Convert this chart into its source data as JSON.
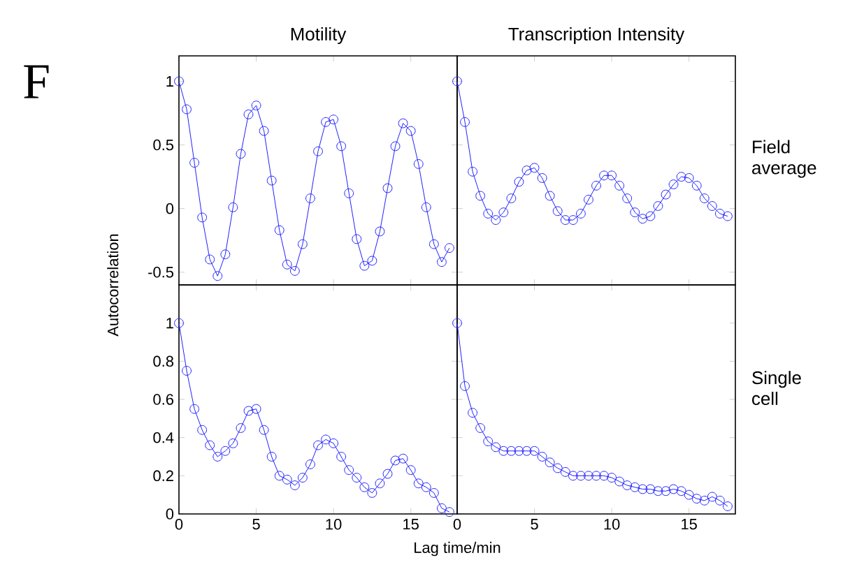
{
  "chart_data": [
    {
      "type": "line",
      "title": "Motility",
      "ylabel": "Autocorrelation",
      "annotations": [
        "F"
      ],
      "tick_labels": "y",
      "marker": "circle",
      "line_style": "solid",
      "x": [
        0,
        0.5,
        1,
        1.5,
        2,
        2.5,
        3,
        3.5,
        4,
        4.5,
        5,
        5.5,
        6,
        6.5,
        7,
        7.5,
        8,
        8.5,
        9,
        9.5,
        10,
        10.5,
        11,
        11.5,
        12,
        12.5,
        13,
        13.5,
        14,
        14.5,
        15,
        15.5,
        16,
        16.5,
        17,
        17.5
      ],
      "xlim": [
        0,
        18
      ],
      "ylim": [
        -0.6,
        1.2
      ],
      "xticks": [
        0,
        5,
        10,
        15
      ],
      "yticks": [
        -0.5,
        0,
        0.5,
        1
      ],
      "series": [
        {
          "color": "#2020ff",
          "values": [
            1.0,
            0.78,
            0.36,
            -0.07,
            -0.4,
            -0.53,
            -0.36,
            0.01,
            0.43,
            0.74,
            0.81,
            0.61,
            0.22,
            -0.17,
            -0.44,
            -0.49,
            -0.28,
            0.08,
            0.45,
            0.68,
            0.7,
            0.49,
            0.12,
            -0.24,
            -0.45,
            -0.41,
            -0.18,
            0.16,
            0.49,
            0.67,
            0.61,
            0.35,
            0.01,
            -0.28,
            -0.42,
            -0.31
          ]
        }
      ]
    },
    {
      "type": "line",
      "title": "Transcription Intensity",
      "annotations": [
        "Field average"
      ],
      "tick_labels": false,
      "marker": "circle",
      "line_style": "solid",
      "x": [
        0,
        0.5,
        1,
        1.5,
        2,
        2.5,
        3,
        3.5,
        4,
        4.5,
        5,
        5.5,
        6,
        6.5,
        7,
        7.5,
        8,
        8.5,
        9,
        9.5,
        10,
        10.5,
        11,
        11.5,
        12,
        12.5,
        13,
        13.5,
        14,
        14.5,
        15,
        15.5,
        16,
        16.5,
        17,
        17.5
      ],
      "xlim": [
        0,
        18
      ],
      "ylim": [
        -0.6,
        1.2
      ],
      "xticks": [
        0,
        5,
        10,
        15
      ],
      "yticks": [
        -0.5,
        0,
        0.5,
        1
      ],
      "series": [
        {
          "color": "#2020ff",
          "values": [
            1.0,
            0.68,
            0.29,
            0.1,
            -0.04,
            -0.09,
            -0.03,
            0.08,
            0.21,
            0.3,
            0.32,
            0.24,
            0.1,
            -0.02,
            -0.09,
            -0.09,
            -0.04,
            0.07,
            0.18,
            0.26,
            0.26,
            0.18,
            0.08,
            -0.03,
            -0.08,
            -0.06,
            0.02,
            0.11,
            0.19,
            0.25,
            0.24,
            0.18,
            0.08,
            0.02,
            -0.04,
            -0.06
          ]
        }
      ]
    },
    {
      "type": "line",
      "xlabel": "Lag time/min",
      "marker": "circle",
      "line_style": "solid",
      "x": [
        0,
        0.5,
        1,
        1.5,
        2,
        2.5,
        3,
        3.5,
        4,
        4.5,
        5,
        5.5,
        6,
        6.5,
        7,
        7.5,
        8,
        8.5,
        9,
        9.5,
        10,
        10.5,
        11,
        11.5,
        12,
        12.5,
        13,
        13.5,
        14,
        14.5,
        15,
        15.5,
        16,
        16.5,
        17,
        17.5
      ],
      "xlim": [
        0,
        18
      ],
      "ylim": [
        0,
        1.2
      ],
      "xticks": [
        0,
        5,
        10,
        15
      ],
      "yticks": [
        0,
        0.2,
        0.4,
        0.6,
        0.8,
        1
      ],
      "series": [
        {
          "color": "#2020ff",
          "values": [
            1.0,
            0.75,
            0.55,
            0.44,
            0.36,
            0.3,
            0.33,
            0.37,
            0.45,
            0.54,
            0.55,
            0.44,
            0.3,
            0.2,
            0.18,
            0.15,
            0.19,
            0.26,
            0.36,
            0.39,
            0.37,
            0.3,
            0.23,
            0.19,
            0.14,
            0.11,
            0.16,
            0.21,
            0.28,
            0.29,
            0.23,
            0.16,
            0.14,
            0.11,
            0.03,
            0.01
          ]
        }
      ]
    },
    {
      "type": "line",
      "annotations": [
        "Single cell"
      ],
      "tick_labels": "x",
      "marker": "circle",
      "line_style": "solid",
      "x": [
        0,
        0.5,
        1,
        1.5,
        2,
        2.5,
        3,
        3.5,
        4,
        4.5,
        5,
        5.5,
        6,
        6.5,
        7,
        7.5,
        8,
        8.5,
        9,
        9.5,
        10,
        10.5,
        11,
        11.5,
        12,
        12.5,
        13,
        13.5,
        14,
        14.5,
        15,
        15.5,
        16,
        16.5,
        17,
        17.5
      ],
      "xlim": [
        0,
        18
      ],
      "ylim": [
        0,
        1.2
      ],
      "xticks": [
        0,
        5,
        10,
        15
      ],
      "yticks": [
        0,
        0.2,
        0.4,
        0.6,
        0.8,
        1
      ],
      "series": [
        {
          "color": "#2020ff",
          "values": [
            1.0,
            0.67,
            0.53,
            0.45,
            0.38,
            0.35,
            0.33,
            0.33,
            0.33,
            0.33,
            0.33,
            0.3,
            0.27,
            0.24,
            0.22,
            0.2,
            0.2,
            0.2,
            0.2,
            0.2,
            0.19,
            0.17,
            0.15,
            0.14,
            0.13,
            0.13,
            0.12,
            0.12,
            0.13,
            0.12,
            0.1,
            0.08,
            0.07,
            0.09,
            0.07,
            0.04
          ]
        }
      ]
    }
  ]
}
